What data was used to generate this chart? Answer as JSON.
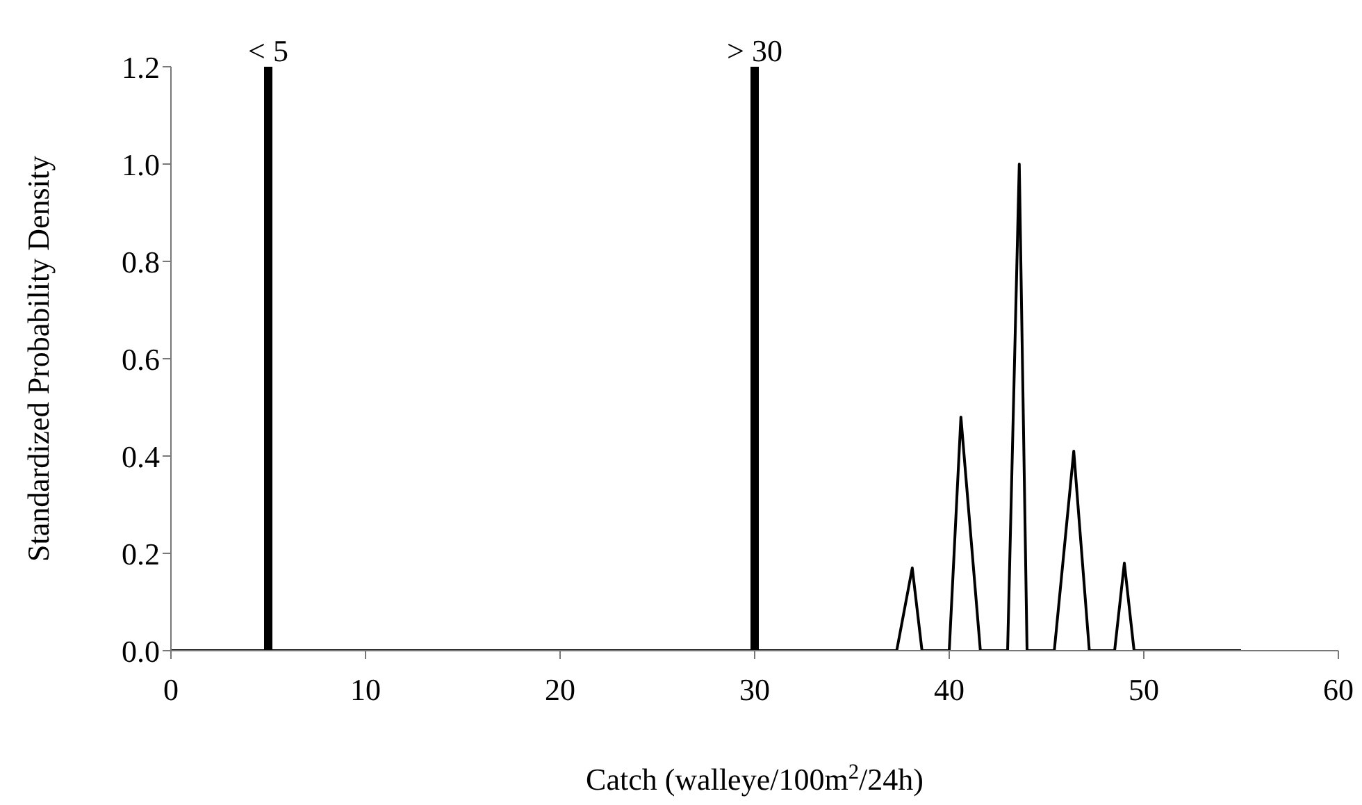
{
  "chart_data": {
    "type": "line",
    "xlabel": "Catch (walleye/100m$^{2}$/24h)",
    "ylabel": "Standardized Probability Density",
    "x": [
      0,
      37.3,
      38.1,
      38.6,
      40.0,
      40.6,
      41.6,
      43.0,
      43.6,
      44.0,
      45.4,
      46.4,
      47.2,
      48.5,
      49.0,
      49.5,
      55
    ],
    "series": [
      {
        "color": "#000000",
        "values": [
          0,
          0,
          0.17,
          0,
          0,
          0.48,
          0,
          0,
          1.0,
          0,
          0,
          0.41,
          0,
          0,
          0.18,
          0,
          0
        ]
      }
    ],
    "xlim": [
      0,
      60
    ],
    "xticks": [
      0,
      10,
      20,
      30,
      40,
      50,
      60
    ],
    "ylim": [
      0,
      1.2
    ],
    "yticks": [
      {
        "value": 0,
        "label": "0.0"
      },
      {
        "value": 0.2,
        "label": "0.2"
      },
      {
        "value": 0.4,
        "label": "0.4"
      },
      {
        "value": 0.6,
        "label": "0.6"
      },
      {
        "value": 0.8,
        "label": "0.8"
      },
      {
        "value": 1,
        "label": "1.0"
      },
      {
        "value": 1.2,
        "label": "1.2"
      }
    ],
    "ref_lines": [
      {
        "axis": "x",
        "value": 5,
        "label": "< 5",
        "color": "#000000"
      },
      {
        "axis": "x",
        "value": 30,
        "label": "> 30",
        "color": "#000000"
      }
    ],
    "grid": false,
    "legend": false,
    "marker": "none",
    "line_style": "solid"
  }
}
